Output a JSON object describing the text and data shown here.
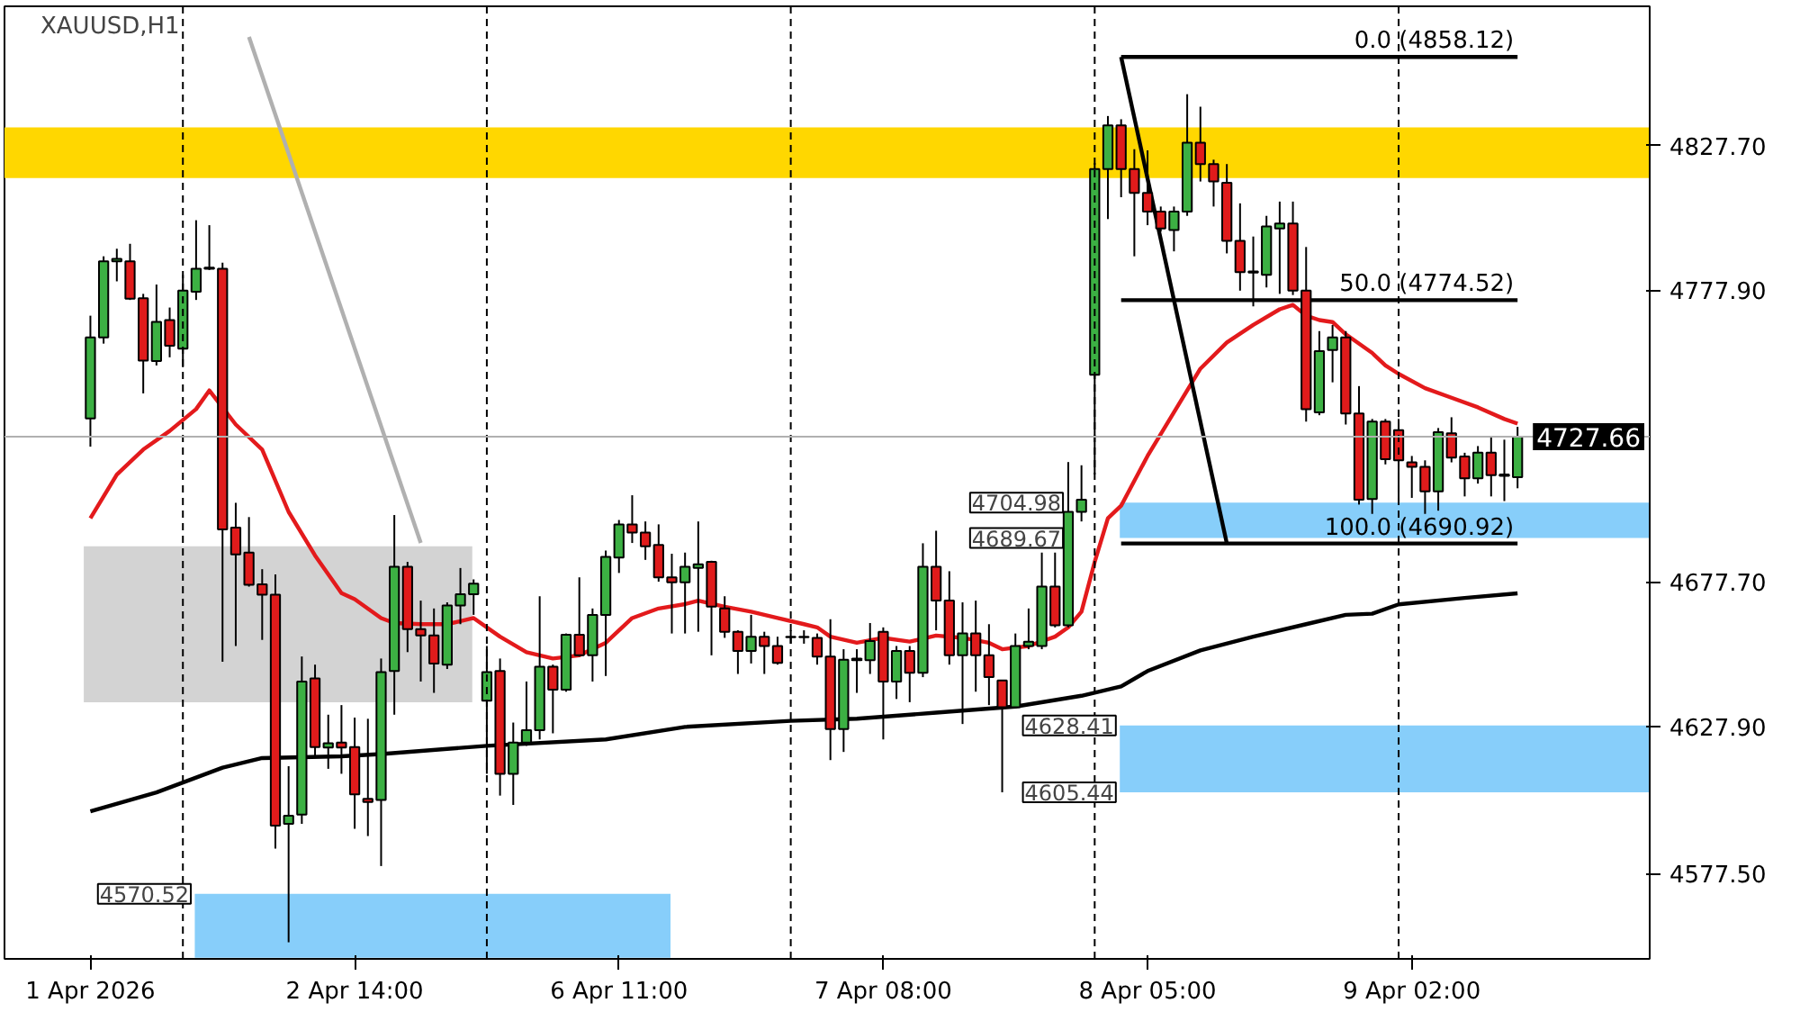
{
  "chart_data": {
    "type": "candlestick",
    "title": "XAUUSD,H1",
    "categories": [
      "1 Apr 2026",
      null,
      null,
      null,
      null,
      null,
      null,
      null,
      null,
      null,
      null,
      null,
      null,
      null,
      null,
      null,
      null,
      null,
      null,
      null,
      "2 Apr 14:00",
      null,
      null,
      null,
      null,
      null,
      null,
      null,
      null,
      null,
      null,
      null,
      null,
      null,
      null,
      null,
      null,
      null,
      null,
      null,
      "6 Apr 11:00",
      null,
      null,
      null,
      null,
      null,
      null,
      null,
      null,
      null,
      null,
      null,
      null,
      null,
      null,
      null,
      null,
      null,
      null,
      null,
      "7 Apr 08:00",
      null,
      null,
      null,
      null,
      null,
      null,
      null,
      null,
      null,
      null,
      null,
      null,
      null,
      null,
      null,
      null,
      null,
      null,
      null,
      "8 Apr 05:00",
      null,
      null,
      null,
      null,
      null,
      null,
      null,
      null,
      null,
      null,
      null,
      null,
      null,
      null,
      null,
      null,
      null,
      null,
      null,
      "9 Apr 02:00",
      null,
      null,
      null,
      null,
      null,
      null,
      null,
      null
    ],
    "ohlc": [
      [
        4733.9,
        4769.2,
        4724.2,
        4761.7
      ],
      [
        4761.7,
        4789.6,
        4759.6,
        4787.9
      ],
      [
        4787.9,
        4792.2,
        4781.0,
        4788.7
      ],
      [
        4787.9,
        4793.9,
        4774.6,
        4775.0
      ],
      [
        4775.2,
        4776.7,
        4742.5,
        4753.8
      ],
      [
        4753.6,
        4779.9,
        4752.1,
        4767.1
      ],
      [
        4767.7,
        4772.0,
        4754.9,
        4758.9
      ],
      [
        4757.9,
        4783.2,
        4751.5,
        4777.8
      ],
      [
        4777.4,
        4802.0,
        4774.6,
        4785.3
      ],
      [
        4785.3,
        4800.3,
        4784.9,
        4785.7
      ],
      [
        4785.3,
        4787.4,
        4650.3,
        4695.8
      ],
      [
        4696.4,
        4704.9,
        4655.7,
        4687.2
      ],
      [
        4687.8,
        4700.0,
        4676.1,
        4676.7
      ],
      [
        4676.9,
        4682.1,
        4657.8,
        4673.3
      ],
      [
        4673.3,
        4680.3,
        4586.1,
        4594.0
      ],
      [
        4594.6,
        4614.4,
        4553.9,
        4597.4
      ],
      [
        4597.8,
        4652.1,
        4594.6,
        4643.5
      ],
      [
        4644.6,
        4649.3,
        4617.2,
        4621.0
      ],
      [
        4620.8,
        4632.1,
        4613.5,
        4622.3
      ],
      [
        4622.5,
        4635.4,
        4611.8,
        4620.8
      ],
      [
        4621.0,
        4631.1,
        4592.9,
        4604.7
      ],
      [
        4603.2,
        4630.7,
        4590.4,
        4602.1
      ],
      [
        4602.8,
        4651.4,
        4580.1,
        4646.7
      ],
      [
        4647.1,
        4700.7,
        4632.1,
        4682.9
      ],
      [
        4682.9,
        4684.6,
        4653.6,
        4661.5
      ],
      [
        4661.5,
        4671.3,
        4643.5,
        4659.3
      ],
      [
        4659.3,
        4668.6,
        4639.6,
        4649.7
      ],
      [
        4649.3,
        4670.7,
        4647.8,
        4669.6
      ],
      [
        4669.6,
        4682.5,
        4663.2,
        4673.5
      ],
      [
        4673.5,
        4678.6,
        4666.4,
        4677.1
      ],
      [
        4636.9,
        4655.7,
        4611.8,
        4646.7
      ],
      [
        4647.1,
        4651.4,
        4604.3,
        4611.8
      ],
      [
        4611.8,
        4629.4,
        4601.1,
        4622.5
      ],
      [
        4622.5,
        4643.5,
        4621.4,
        4626.8
      ],
      [
        4626.8,
        4672.8,
        4623.6,
        4648.6
      ],
      [
        4648.6,
        4649.3,
        4625.7,
        4640.7
      ],
      [
        4640.7,
        4660.0,
        4640.0,
        4659.6
      ],
      [
        4659.6,
        4679.3,
        4652.1,
        4652.5
      ],
      [
        4652.5,
        4668.6,
        4643.5,
        4666.4
      ],
      [
        4666.4,
        4688.5,
        4645.4,
        4686.3
      ],
      [
        4686.1,
        4699.0,
        4680.8,
        4697.5
      ],
      [
        4697.5,
        4707.5,
        4691.1,
        4694.7
      ],
      [
        4694.7,
        4698.5,
        4685.3,
        4690.0
      ],
      [
        4690.4,
        4697.5,
        4677.8,
        4679.3
      ],
      [
        4679.3,
        4687.4,
        4660.0,
        4677.6
      ],
      [
        4677.6,
        4687.8,
        4660.0,
        4682.9
      ],
      [
        4682.5,
        4698.5,
        4660.6,
        4683.8
      ],
      [
        4684.6,
        4685.0,
        4652.5,
        4669.2
      ],
      [
        4668.6,
        4672.8,
        4658.5,
        4660.6
      ],
      [
        4660.6,
        4661.1,
        4646.1,
        4654.0
      ],
      [
        4654.0,
        4666.4,
        4649.7,
        4658.9
      ],
      [
        4658.9,
        4660.6,
        4646.1,
        4655.7
      ],
      [
        4655.7,
        4658.9,
        4649.3,
        4649.9
      ],
      [
        4658.9,
        4661.1,
        4656.5,
        4658.7
      ],
      [
        4658.7,
        4661.1,
        4656.5,
        4658.9
      ],
      [
        4658.5,
        4660.0,
        4649.3,
        4652.1
      ],
      [
        4652.1,
        4664.9,
        4616.5,
        4627.2
      ],
      [
        4627.2,
        4654.6,
        4619.3,
        4651.0
      ],
      [
        4650.8,
        4654.6,
        4639.6,
        4651.4
      ],
      [
        4650.8,
        4663.6,
        4646.1,
        4657.4
      ],
      [
        4660.6,
        4662.1,
        4623.6,
        4643.5
      ],
      [
        4643.5,
        4655.7,
        4637.5,
        4654.0
      ],
      [
        4654.0,
        4655.7,
        4636.4,
        4646.5
      ],
      [
        4646.5,
        4691.0,
        4645.0,
        4682.9
      ],
      [
        4682.9,
        4695.3,
        4661.1,
        4671.3
      ],
      [
        4671.3,
        4681.4,
        4649.3,
        4652.5
      ],
      [
        4652.5,
        4670.7,
        4628.9,
        4660.0
      ],
      [
        4660.0,
        4671.3,
        4640.0,
        4652.5
      ],
      [
        4652.5,
        4663.2,
        4635.4,
        4645.0
      ],
      [
        4643.9,
        4643.9,
        4605.44,
        4634.7
      ],
      [
        4634.7,
        4660.0,
        4634.3,
        4655.7
      ],
      [
        4655.7,
        4668.6,
        4654.6,
        4657.2
      ],
      [
        4655.7,
        4687.8,
        4654.6,
        4676.1
      ],
      [
        4676.1,
        4687.8,
        4662.1,
        4662.8
      ],
      [
        4662.8,
        4718.9,
        4662.1,
        4701.8
      ],
      [
        4701.8,
        4717.8,
        4698.5,
        4706.0
      ],
      [
        4748.9,
        4821.7,
        4714.6,
        4819.6
      ],
      [
        4819.6,
        4837.8,
        4802.4,
        4834.6
      ],
      [
        4834.6,
        4836.7,
        4809.9,
        4819.6
      ],
      [
        4819.6,
        4826.4,
        4789.6,
        4811.4
      ],
      [
        4811.4,
        4826.0,
        4800.3,
        4805.0
      ],
      [
        4805.0,
        4806.7,
        4798.1,
        4799.2
      ],
      [
        4798.6,
        4806.7,
        4791.3,
        4805.0
      ],
      [
        4805.0,
        4845.3,
        4803.5,
        4828.6
      ],
      [
        4828.6,
        4841.0,
        4815.3,
        4821.3
      ],
      [
        4821.3,
        4822.8,
        4806.7,
        4815.3
      ],
      [
        4814.9,
        4821.3,
        4790.6,
        4794.9
      ],
      [
        4794.9,
        4807.8,
        4777.8,
        4784.2
      ],
      [
        4784.4,
        4796.4,
        4772.4,
        4784.0
      ],
      [
        4783.2,
        4803.5,
        4778.9,
        4799.9
      ],
      [
        4799.2,
        4808.4,
        4776.7,
        4800.9
      ],
      [
        4800.9,
        4808.4,
        4776.3,
        4777.8
      ],
      [
        4777.8,
        4792.8,
        4732.8,
        4737.1
      ],
      [
        4736.0,
        4763.9,
        4735.0,
        4757.0
      ],
      [
        4757.4,
        4766.0,
        4746.3,
        4761.7
      ],
      [
        4761.7,
        4763.9,
        4731.8,
        4735.6
      ],
      [
        4735.6,
        4745.0,
        4704.3,
        4706.0
      ],
      [
        4706.2,
        4733.7,
        4701.1,
        4732.8
      ],
      [
        4732.8,
        4733.7,
        4718.1,
        4719.9
      ],
      [
        4729.9,
        4733.7,
        4704.4,
        4719.5
      ],
      [
        4718.8,
        4721.0,
        4706.6,
        4717.3
      ],
      [
        4717.3,
        4719.5,
        4701.1,
        4708.8
      ],
      [
        4708.8,
        4730.6,
        4702.2,
        4729.2
      ],
      [
        4728.8,
        4734.3,
        4718.8,
        4720.4
      ],
      [
        4720.8,
        4722.1,
        4707.1,
        4713.3
      ],
      [
        4713.3,
        4724.4,
        4711.5,
        4722.1
      ],
      [
        4722.1,
        4727.7,
        4707.1,
        4714.4
      ],
      [
        4714.6,
        4726.6,
        4705.5,
        4714.2
      ],
      [
        4713.7,
        4731.0,
        4709.9,
        4727.66
      ]
    ],
    "colors": [
      "#3cb043",
      "#3cb043",
      "#3cb043",
      "#e01b1b",
      "#e01b1b",
      "#3cb043",
      "#e01b1b",
      "#3cb043",
      "#3cb043",
      "#3cb043",
      "#e01b1b",
      "#e01b1b",
      "#e01b1b",
      "#e01b1b",
      "#e01b1b",
      "#3cb043",
      "#3cb043",
      "#e01b1b",
      "#3cb043",
      "#e01b1b",
      "#e01b1b",
      "#e01b1b",
      "#3cb043",
      "#3cb043",
      "#e01b1b",
      "#e01b1b",
      "#e01b1b",
      "#3cb043",
      "#3cb043",
      "#3cb043",
      "#3cb043",
      "#e01b1b",
      "#3cb043",
      "#3cb043",
      "#3cb043",
      "#e01b1b",
      "#3cb043",
      "#e01b1b",
      "#3cb043",
      "#3cb043",
      "#3cb043",
      "#e01b1b",
      "#e01b1b",
      "#e01b1b",
      "#e01b1b",
      "#3cb043",
      "#3cb043",
      "#e01b1b",
      "#e01b1b",
      "#e01b1b",
      "#3cb043",
      "#e01b1b",
      "#e01b1b",
      "#e01b1b",
      "#3cb043",
      "#e01b1b",
      "#e01b1b",
      "#3cb043",
      "#3cb043",
      "#3cb043",
      "#e01b1b",
      "#3cb043",
      "#e01b1b",
      "#3cb043",
      "#e01b1b",
      "#e01b1b",
      "#3cb043",
      "#e01b1b",
      "#e01b1b",
      "#e01b1b",
      "#3cb043",
      "#3cb043",
      "#3cb043",
      "#e01b1b",
      "#3cb043",
      "#3cb043",
      "#3cb043",
      "#3cb043",
      "#e01b1b",
      "#e01b1b",
      "#e01b1b",
      "#e01b1b",
      "#3cb043",
      "#3cb043",
      "#e01b1b",
      "#e01b1b",
      "#e01b1b",
      "#e01b1b",
      "#e01b1b",
      "#3cb043",
      "#3cb043",
      "#e01b1b",
      "#e01b1b",
      "#3cb043",
      "#3cb043",
      "#e01b1b",
      "#e01b1b",
      "#3cb043",
      "#e01b1b",
      "#e01b1b",
      "#e01b1b",
      "#e01b1b",
      "#3cb043",
      "#e01b1b",
      "#e01b1b",
      "#3cb043",
      "#e01b1b",
      "#e01b1b",
      "#3cb043"
    ],
    "series": [
      {
        "type": "line",
        "color": "#b0b0b0",
        "values": [
          null,
          null,
          null,
          null,
          null,
          null,
          null,
          null,
          null,
          null,
          null,
          null,
          4865,
          null,
          null,
          null,
          null,
          null,
          null,
          null,
          null,
          null,
          null,
          null,
          null,
          4691.1,
          null,
          null,
          null,
          null,
          null,
          null,
          null,
          null,
          null,
          null,
          null,
          null,
          null,
          null,
          null,
          null,
          null,
          null,
          null,
          null,
          null,
          null,
          null,
          null,
          null,
          null,
          null,
          null,
          null,
          null,
          null,
          null,
          null,
          null,
          null,
          null,
          null,
          null,
          null,
          null,
          null,
          null,
          null,
          null,
          null,
          null,
          null,
          null,
          null,
          null,
          null,
          null,
          null,
          null,
          null,
          null,
          null,
          null,
          null,
          null,
          null,
          null,
          null,
          null,
          null,
          null,
          null,
          null,
          null,
          null,
          null,
          null,
          null,
          null,
          null,
          null,
          null,
          null,
          null,
          null,
          null,
          null,
          null
        ]
      },
      {
        "type": "line",
        "color": "#e31a1c",
        "values": [
          4699.6,
          null,
          4714.6,
          null,
          4723.2,
          null,
          4729.6,
          null,
          4737.1,
          4743.5,
          null,
          4731.8,
          null,
          4723.2,
          null,
          4701.8,
          null,
          4686.8,
          null,
          4673.9,
          4671.8,
          null,
          4665.3,
          4663.6,
          null,
          4663.2,
          null,
          4663.2,
          null,
          4665.3,
          null,
          4658.9,
          null,
          4653.6,
          null,
          4651.4,
          null,
          4652.5,
          null,
          4656.8,
          null,
          4665.3,
          null,
          4668.6,
          null,
          4670.1,
          4671.3,
          null,
          4669.2,
          null,
          4667.5,
          null,
          4665.3,
          null,
          4663.2,
          4662.1,
          4658.9,
          null,
          4656.8,
          null,
          4658.5,
          null,
          4657.2,
          null,
          4659.3,
          null,
          4658.5,
          null,
          4656.8,
          4654.6,
          null,
          4655.7,
          null,
          4658.9,
          4662.1,
          4667.5,
          4684.6,
          4699.6,
          4703.9,
          null,
          4721.0,
          null,
          4736.0,
          null,
          4751.0,
          null,
          4760.0,
          null,
          4766.0,
          null,
          4771.4,
          4772.9,
          4769.2,
          4767.7,
          4767.0,
          4762.8,
          null,
          4756.4,
          4752.1,
          4749.2,
          null,
          4744.3,
          null,
          4741.0,
          null,
          4737.7,
          null,
          4733.7,
          4732.1
        ]
      },
      {
        "type": "line",
        "color": "#000000",
        "values": [
          4598.9,
          null,
          null,
          null,
          null,
          4605.4,
          null,
          null,
          null,
          null,
          4613.9,
          null,
          null,
          4617.2,
          null,
          null,
          null,
          null,
          null,
          4617.8,
          null,
          null,
          4618.6,
          null,
          null,
          null,
          null,
          null,
          null,
          null,
          4621.4,
          null,
          null,
          null,
          null,
          null,
          null,
          null,
          null,
          4623.6,
          null,
          null,
          null,
          null,
          null,
          4627.9,
          null,
          null,
          null,
          null,
          null,
          null,
          null,
          4630.0,
          null,
          null,
          null,
          null,
          4630.7,
          null,
          null,
          null,
          null,
          null,
          4632.8,
          null,
          null,
          null,
          null,
          null,
          4634.9,
          null,
          null,
          null,
          null,
          4638.6,
          null,
          null,
          4641.8,
          null,
          4647.1,
          null,
          null,
          null,
          4654.2,
          null,
          null,
          null,
          4658.9,
          null,
          null,
          null,
          4663.2,
          null,
          null,
          4666.4,
          null,
          4666.8,
          null,
          4670.0,
          null,
          null,
          null,
          null,
          4672.2,
          null,
          null,
          null,
          4673.8
        ]
      },
      {
        "type": "line",
        "color": "#000000",
        "name": "0.0 (4858.12)",
        "values": [
          null,
          null,
          null,
          null,
          null,
          null,
          null,
          null,
          null,
          null,
          null,
          null,
          null,
          null,
          null,
          null,
          null,
          null,
          null,
          null,
          null,
          null,
          null,
          null,
          null,
          null,
          null,
          null,
          null,
          null,
          null,
          null,
          null,
          null,
          null,
          null,
          null,
          null,
          null,
          null,
          null,
          null,
          null,
          null,
          null,
          null,
          null,
          null,
          null,
          null,
          null,
          null,
          null,
          null,
          null,
          null,
          null,
          null,
          null,
          null,
          null,
          null,
          null,
          null,
          null,
          null,
          null,
          null,
          null,
          null,
          null,
          null,
          null,
          null,
          null,
          null,
          null,
          null,
          4858.12,
          4858.12,
          4858.12,
          4858.12,
          4858.12,
          4858.12,
          4858.12,
          4858.12,
          4858.12,
          4858.12,
          4858.12,
          4858.12,
          4858.12,
          4858.12,
          4858.12,
          4858.12,
          4858.12,
          4858.12,
          4858.12,
          4858.12,
          4858.12,
          4858.12,
          4858.12,
          4858.12,
          4858.12,
          4858.12,
          4858.12,
          4858.12,
          4858.12,
          4858.12,
          4858.12
        ]
      },
      {
        "type": "line",
        "color": "#000000",
        "name": "50.0 (4774.52)",
        "values": [
          null,
          null,
          null,
          null,
          null,
          null,
          null,
          null,
          null,
          null,
          null,
          null,
          null,
          null,
          null,
          null,
          null,
          null,
          null,
          null,
          null,
          null,
          null,
          null,
          null,
          null,
          null,
          null,
          null,
          null,
          null,
          null,
          null,
          null,
          null,
          null,
          null,
          null,
          null,
          null,
          null,
          null,
          null,
          null,
          null,
          null,
          null,
          null,
          null,
          null,
          null,
          null,
          null,
          null,
          null,
          null,
          null,
          null,
          null,
          null,
          null,
          null,
          null,
          null,
          null,
          null,
          null,
          null,
          null,
          null,
          null,
          null,
          null,
          null,
          null,
          null,
          null,
          null,
          4774.52,
          4774.52,
          4774.52,
          4774.52,
          4774.52,
          4774.52,
          4774.52,
          4774.52,
          4774.52,
          4774.52,
          4774.52,
          4774.52,
          4774.52,
          4774.52,
          4774.52,
          4774.52,
          4774.52,
          4774.52,
          4774.52,
          4774.52,
          4774.52,
          4774.52,
          4774.52,
          4774.52,
          4774.52,
          4774.52,
          4774.52,
          4774.52,
          4774.52,
          4774.52,
          4774.52
        ]
      },
      {
        "type": "line",
        "color": "#000000",
        "name": "100.0 (4690.92)",
        "values": [
          null,
          null,
          null,
          null,
          null,
          null,
          null,
          null,
          null,
          null,
          null,
          null,
          null,
          null,
          null,
          null,
          null,
          null,
          null,
          null,
          null,
          null,
          null,
          null,
          null,
          null,
          null,
          null,
          null,
          null,
          null,
          null,
          null,
          null,
          null,
          null,
          null,
          null,
          null,
          null,
          null,
          null,
          null,
          null,
          null,
          null,
          null,
          null,
          null,
          null,
          null,
          null,
          null,
          null,
          null,
          null,
          null,
          null,
          null,
          null,
          null,
          null,
          null,
          null,
          null,
          null,
          null,
          null,
          null,
          null,
          null,
          null,
          null,
          null,
          null,
          null,
          null,
          null,
          4690.92,
          4690.92,
          4690.92,
          4690.92,
          4690.92,
          4690.92,
          4690.92,
          4690.92,
          4690.92,
          4690.92,
          4690.92,
          4690.92,
          4690.92,
          4690.92,
          4690.92,
          4690.92,
          4690.92,
          4690.92,
          4690.92,
          4690.92,
          4690.92,
          4690.92,
          4690.92,
          4690.92,
          4690.92,
          4690.92,
          4690.92,
          4690.92,
          4690.92,
          4690.92,
          4690.92
        ]
      },
      {
        "type": "line",
        "color": "#000000",
        "values": [
          null,
          null,
          null,
          null,
          null,
          null,
          null,
          null,
          null,
          null,
          null,
          null,
          null,
          null,
          null,
          null,
          null,
          null,
          null,
          null,
          null,
          null,
          null,
          null,
          null,
          null,
          null,
          null,
          null,
          null,
          null,
          null,
          null,
          null,
          null,
          null,
          null,
          null,
          null,
          null,
          null,
          null,
          null,
          null,
          null,
          null,
          null,
          null,
          null,
          null,
          null,
          null,
          null,
          null,
          null,
          null,
          null,
          null,
          null,
          null,
          null,
          null,
          null,
          null,
          null,
          null,
          null,
          null,
          null,
          null,
          null,
          null,
          null,
          null,
          null,
          null,
          null,
          null,
          4858.12,
          null,
          null,
          null,
          null,
          null,
          null,
          null,
          4690.92,
          null,
          null,
          null,
          null,
          null,
          null,
          null,
          null,
          null,
          null,
          null,
          null,
          null,
          null,
          null,
          null,
          null,
          null,
          null,
          null,
          null,
          null
        ]
      }
    ],
    "bands": [
      {
        "axis": "y",
        "from": 4816.5,
        "to": 4833.9,
        "color": "#ffd700"
      },
      {
        "axis": "y",
        "from": 4692.8,
        "to": 4704.98,
        "color": "#87cefa"
      },
      {
        "axis": "y",
        "from": 4605.44,
        "to": 4628.41,
        "color": "#87cefa"
      },
      {
        "axis": "y",
        "from": 4548.6,
        "to": 4570.52,
        "color": "#87cefa"
      },
      {
        "axis": "y",
        "from": 4636.4,
        "to": 4690.0,
        "color": "#d3d3d3"
      }
    ],
    "ref_lines": [
      {
        "axis": "y",
        "value": 4727.66,
        "label": "4727.66",
        "color": "#b0b0b0"
      }
    ],
    "annotations": [
      "4704.98",
      "4689.67",
      "4628.41",
      "4605.44",
      "4570.52"
    ],
    "ylim": [
      4548.2,
      4875.5
    ],
    "yticks": [
      {
        "value": 4577.5,
        "label": "4577.50"
      },
      {
        "value": 4627.9,
        "label": "4627.90"
      },
      {
        "value": 4677.7,
        "label": "4677.70"
      },
      {
        "value": 4777.9,
        "label": "4777.90"
      },
      {
        "value": 4827.7,
        "label": "4827.70"
      }
    ],
    "grid": false
  }
}
